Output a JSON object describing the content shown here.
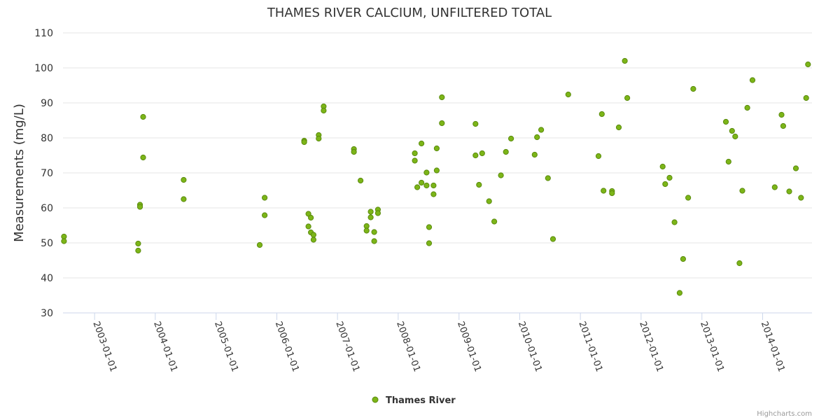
{
  "chart_data": {
    "type": "scatter",
    "title": "THAMES RIVER CALCIUM, UNFILTERED TOTAL",
    "xlabel": "",
    "ylabel": "Measurements (mg/L)",
    "ylim": [
      30,
      110
    ],
    "yticks": [
      "30",
      "40",
      "50",
      "60",
      "70",
      "80",
      "90",
      "100",
      "110"
    ],
    "xlim": [
      "2002-06-25",
      "2014-10-25"
    ],
    "xticks": [
      "2003-01-01",
      "2004-01-01",
      "2005-01-01",
      "2006-01-01",
      "2007-01-01",
      "2008-01-01",
      "2009-01-01",
      "2010-01-01",
      "2011-01-01",
      "2012-01-01",
      "2013-01-01",
      "2014-01-01"
    ],
    "grid": true,
    "legend": "bottom-center",
    "series": [
      {
        "name": "Thames River",
        "color": "#7cb518",
        "points": [
          [
            "2002-07-01",
            51.8
          ],
          [
            "2002-07-01",
            50.5
          ],
          [
            "2003-09-20",
            49.8
          ],
          [
            "2003-09-20",
            47.8
          ],
          [
            "2003-10-01",
            60.9
          ],
          [
            "2003-10-01",
            60.3
          ],
          [
            "2003-10-20",
            86.0
          ],
          [
            "2003-10-20",
            74.4
          ],
          [
            "2004-06-20",
            68.0
          ],
          [
            "2004-06-20",
            62.5
          ],
          [
            "2005-09-20",
            49.4
          ],
          [
            "2005-10-20",
            62.9
          ],
          [
            "2005-10-20",
            57.9
          ],
          [
            "2006-06-15",
            79.2
          ],
          [
            "2006-06-15",
            78.8
          ],
          [
            "2006-07-10",
            58.3
          ],
          [
            "2006-07-10",
            54.7
          ],
          [
            "2006-07-25",
            57.2
          ],
          [
            "2006-07-25",
            53.0
          ],
          [
            "2006-08-10",
            52.3
          ],
          [
            "2006-08-10",
            50.9
          ],
          [
            "2006-09-10",
            80.8
          ],
          [
            "2006-09-10",
            79.8
          ],
          [
            "2006-10-10",
            89.0
          ],
          [
            "2006-10-10",
            87.8
          ],
          [
            "2007-04-10",
            76.8
          ],
          [
            "2007-04-10",
            76.0
          ],
          [
            "2007-05-20",
            67.8
          ],
          [
            "2007-06-25",
            54.8
          ],
          [
            "2007-06-25",
            53.5
          ],
          [
            "2007-07-20",
            58.9
          ],
          [
            "2007-07-20",
            57.3
          ],
          [
            "2007-08-10",
            53.1
          ],
          [
            "2007-08-10",
            50.5
          ],
          [
            "2007-09-01",
            59.5
          ],
          [
            "2007-09-01",
            58.5
          ],
          [
            "2008-04-10",
            75.6
          ],
          [
            "2008-04-10",
            73.5
          ],
          [
            "2008-04-25",
            65.9
          ],
          [
            "2008-05-20",
            78.4
          ],
          [
            "2008-05-20",
            67.2
          ],
          [
            "2008-06-20",
            70.1
          ],
          [
            "2008-06-20",
            66.4
          ],
          [
            "2008-07-05",
            54.5
          ],
          [
            "2008-07-05",
            49.9
          ],
          [
            "2008-08-01",
            66.4
          ],
          [
            "2008-08-01",
            63.9
          ],
          [
            "2008-08-20",
            77.0
          ],
          [
            "2008-08-20",
            70.7
          ],
          [
            "2008-09-20",
            91.6
          ],
          [
            "2008-09-20",
            84.2
          ],
          [
            "2009-04-10",
            84.0
          ],
          [
            "2009-04-10",
            75.0
          ],
          [
            "2009-05-01",
            66.6
          ],
          [
            "2009-05-20",
            75.6
          ],
          [
            "2009-07-01",
            61.9
          ],
          [
            "2009-08-01",
            56.1
          ],
          [
            "2009-09-10",
            69.3
          ],
          [
            "2009-10-10",
            76.0
          ],
          [
            "2009-11-10",
            79.8
          ],
          [
            "2010-04-01",
            75.2
          ],
          [
            "2010-04-15",
            80.2
          ],
          [
            "2010-05-10",
            82.3
          ],
          [
            "2010-06-20",
            68.5
          ],
          [
            "2010-07-20",
            51.1
          ],
          [
            "2010-10-20",
            92.4
          ],
          [
            "2011-04-20",
            74.8
          ],
          [
            "2011-05-10",
            86.8
          ],
          [
            "2011-05-20",
            64.9
          ],
          [
            "2011-07-10",
            64.8
          ],
          [
            "2011-07-10",
            64.2
          ],
          [
            "2011-08-20",
            83.0
          ],
          [
            "2011-09-25",
            102.0
          ],
          [
            "2011-10-10",
            91.4
          ],
          [
            "2012-05-10",
            71.8
          ],
          [
            "2012-05-25",
            66.8
          ],
          [
            "2012-06-20",
            68.6
          ],
          [
            "2012-07-20",
            55.9
          ],
          [
            "2012-08-20",
            35.7
          ],
          [
            "2012-09-10",
            45.4
          ],
          [
            "2012-10-10",
            62.9
          ],
          [
            "2012-11-10",
            94.0
          ],
          [
            "2013-05-25",
            84.6
          ],
          [
            "2013-06-10",
            73.2
          ],
          [
            "2013-07-01",
            82.0
          ],
          [
            "2013-07-20",
            80.4
          ],
          [
            "2013-08-15",
            44.2
          ],
          [
            "2013-09-01",
            64.9
          ],
          [
            "2013-10-01",
            88.6
          ],
          [
            "2013-11-01",
            96.5
          ],
          [
            "2014-03-15",
            65.9
          ],
          [
            "2014-04-25",
            86.6
          ],
          [
            "2014-05-05",
            83.4
          ],
          [
            "2014-06-10",
            64.7
          ],
          [
            "2014-07-20",
            71.3
          ],
          [
            "2014-08-20",
            62.9
          ],
          [
            "2014-09-20",
            91.4
          ],
          [
            "2014-10-01",
            101.0
          ]
        ]
      }
    ]
  },
  "credit": "Highcharts.com"
}
